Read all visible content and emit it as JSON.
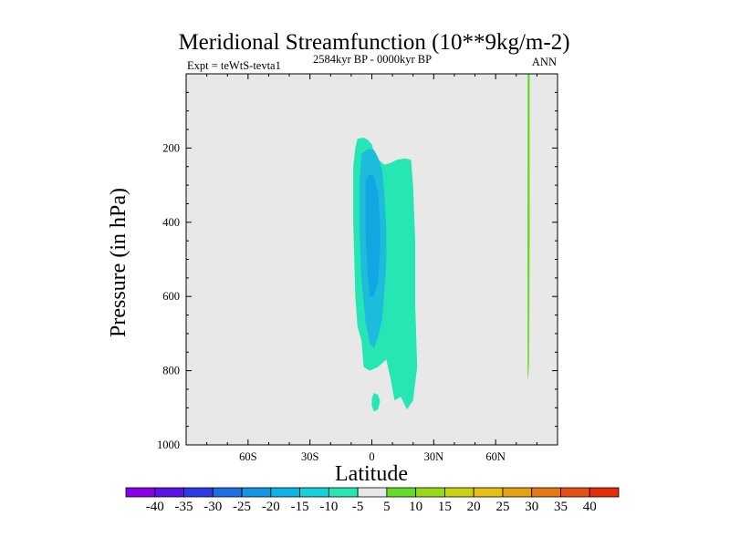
{
  "chart_data": {
    "type": "contour",
    "title": "Meridional Streamfunction (10**9kg/m-2)",
    "left_label": "Expt = teWtS-tevta1",
    "center_label": "2584kyr BP - 0000kyr BP",
    "right_label": "ANN",
    "xlabel": "Latitude",
    "ylabel": "Pressure (in hPa)",
    "xlim": [
      -90,
      90
    ],
    "ylim": [
      1000,
      0
    ],
    "x_ticks": [
      {
        "value": -60,
        "label": "60S"
      },
      {
        "value": -30,
        "label": "30S"
      },
      {
        "value": 0,
        "label": "0"
      },
      {
        "value": 30,
        "label": "30N"
      },
      {
        "value": 60,
        "label": "60N"
      }
    ],
    "y_ticks": [
      {
        "value": 200,
        "label": "200"
      },
      {
        "value": 400,
        "label": "400"
      },
      {
        "value": 600,
        "label": "600"
      },
      {
        "value": 800,
        "label": "800"
      },
      {
        "value": 1000,
        "label": "1000"
      }
    ],
    "background_color": "#e8e8e8",
    "regions": [
      {
        "name": "region-neg-5",
        "level": -5,
        "color": "#26e6b4",
        "outline": [
          [
            -7,
            175
          ],
          [
            -4,
            172
          ],
          [
            -2,
            178
          ],
          [
            0,
            190
          ],
          [
            1,
            210
          ],
          [
            3,
            230
          ],
          [
            6,
            245
          ],
          [
            9,
            240
          ],
          [
            12,
            232
          ],
          [
            16,
            228
          ],
          [
            19,
            232
          ],
          [
            20,
            300
          ],
          [
            21,
            450
          ],
          [
            21,
            620
          ],
          [
            22,
            790
          ],
          [
            20,
            880
          ],
          [
            17,
            905
          ],
          [
            14,
            870
          ],
          [
            11,
            880
          ],
          [
            9,
            820
          ],
          [
            7,
            770
          ],
          [
            3,
            790
          ],
          [
            -1,
            800
          ],
          [
            -4,
            790
          ],
          [
            -5,
            720
          ],
          [
            -7,
            680
          ],
          [
            -8,
            600
          ],
          [
            -9,
            400
          ],
          [
            -9,
            250
          ],
          [
            -8,
            200
          ]
        ]
      },
      {
        "name": "region-neg-5-blob",
        "level": -5,
        "color": "#26e6b4",
        "outline": [
          [
            1,
            860
          ],
          [
            3,
            865
          ],
          [
            4,
            882
          ],
          [
            3,
            905
          ],
          [
            1,
            910
          ],
          [
            0,
            895
          ],
          [
            0,
            875
          ]
        ]
      },
      {
        "name": "region-neg-10",
        "level": -10,
        "color": "#1cbcda",
        "outline": [
          [
            -5,
            215
          ],
          [
            -2,
            203
          ],
          [
            1,
            205
          ],
          [
            3,
            225
          ],
          [
            5,
            260
          ],
          [
            6,
            320
          ],
          [
            7,
            420
          ],
          [
            7,
            510
          ],
          [
            6,
            590
          ],
          [
            5,
            660
          ],
          [
            3,
            710
          ],
          [
            1,
            740
          ],
          [
            -1,
            725
          ],
          [
            -3,
            670
          ],
          [
            -5,
            560
          ],
          [
            -6,
            420
          ],
          [
            -6,
            300
          ]
        ]
      },
      {
        "name": "region-neg-15",
        "level": -15,
        "color": "#12a6e2",
        "outline": [
          [
            -3,
            285
          ],
          [
            -1,
            270
          ],
          [
            1,
            275
          ],
          [
            3,
            320
          ],
          [
            4,
            400
          ],
          [
            4,
            480
          ],
          [
            3,
            560
          ],
          [
            1,
            600
          ],
          [
            -1,
            600
          ],
          [
            -2,
            540
          ],
          [
            -3,
            440
          ],
          [
            -3,
            340
          ]
        ]
      },
      {
        "name": "region-pos-5",
        "level": 5,
        "color": "#64dc28",
        "outline": [
          [
            75.5,
            0
          ],
          [
            76.5,
            0
          ],
          [
            76.5,
            440
          ],
          [
            76.2,
            780
          ],
          [
            76.0,
            800
          ],
          [
            75.8,
            825
          ],
          [
            75.5,
            810
          ],
          [
            75.4,
            440
          ]
        ]
      }
    ],
    "colorbar": {
      "levels": [
        -40,
        -35,
        -30,
        -25,
        -20,
        -15,
        -10,
        -5,
        5,
        10,
        15,
        20,
        25,
        30,
        35,
        40
      ],
      "colors": [
        "#8a00e6",
        "#5a14e6",
        "#2d3ce6",
        "#1e6ee6",
        "#1496e6",
        "#0fb4e6",
        "#14d2dc",
        "#26e6b4",
        "#e8e8e8",
        "#64dc28",
        "#96dc14",
        "#c8d214",
        "#e6be14",
        "#e6a014",
        "#e67814",
        "#e65014",
        "#e62d05"
      ]
    }
  }
}
